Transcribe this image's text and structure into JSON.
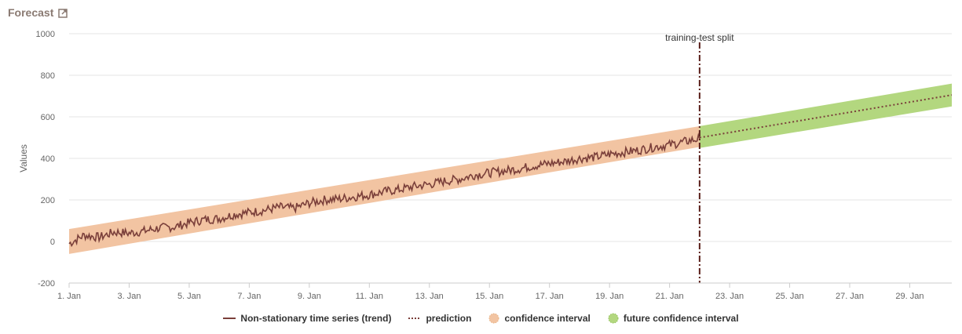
{
  "panel": {
    "title": "Forecast",
    "link_icon": "external-link-icon"
  },
  "colors": {
    "series": "#7a3f3a",
    "prediction": "#7a3f3a",
    "confidence": "#f2c4a2",
    "future_confidence": "#b3d77f",
    "split_line": "#5a1f1a",
    "grid": "#e6e6e6"
  },
  "chart_data": {
    "type": "line",
    "title": "",
    "xlabel": "",
    "ylabel": "Values",
    "ylim": [
      -200,
      1000
    ],
    "yticks": [
      -200,
      0,
      200,
      400,
      600,
      800,
      1000
    ],
    "xlim": [
      1,
      30.4
    ],
    "xticks": [
      {
        "day": 1,
        "label": "1. Jan"
      },
      {
        "day": 3,
        "label": "3. Jan"
      },
      {
        "day": 5,
        "label": "5. Jan"
      },
      {
        "day": 7,
        "label": "7. Jan"
      },
      {
        "day": 9,
        "label": "9. Jan"
      },
      {
        "day": 11,
        "label": "11. Jan"
      },
      {
        "day": 13,
        "label": "13. Jan"
      },
      {
        "day": 15,
        "label": "15. Jan"
      },
      {
        "day": 17,
        "label": "17. Jan"
      },
      {
        "day": 19,
        "label": "19. Jan"
      },
      {
        "day": 21,
        "label": "21. Jan"
      },
      {
        "day": 23,
        "label": "23. Jan"
      },
      {
        "day": 25,
        "label": "25. Jan"
      },
      {
        "day": 27,
        "label": "27. Jan"
      },
      {
        "day": 29,
        "label": "29. Jan"
      }
    ],
    "grid": true,
    "legend_position": "bottom-center",
    "split": {
      "day": 22.0,
      "label": "training-test split"
    },
    "series": [
      {
        "name": "Non-stationary time series (trend)",
        "style": "solid",
        "x": [
          1,
          1.5,
          2,
          2.5,
          3,
          3.5,
          4,
          4.5,
          5,
          5.5,
          6,
          6.5,
          7,
          7.5,
          8,
          8.5,
          9,
          9.5,
          10,
          10.5,
          11,
          11.5,
          12,
          12.5,
          13,
          13.5,
          14,
          14.5,
          15,
          15.5,
          16,
          16.5,
          17,
          17.5,
          18,
          18.5,
          19,
          19.5,
          20,
          20.5,
          21,
          21.5,
          22
        ],
        "y": [
          -10,
          30,
          20,
          45,
          40,
          50,
          65,
          70,
          90,
          105,
          110,
          130,
          140,
          150,
          165,
          160,
          185,
          200,
          205,
          215,
          225,
          240,
          250,
          265,
          275,
          290,
          300,
          320,
          330,
          340,
          350,
          365,
          375,
          385,
          400,
          405,
          420,
          430,
          440,
          455,
          465,
          480,
          495
        ]
      },
      {
        "name": "prediction",
        "style": "dotted",
        "x": [
          22,
          30.4
        ],
        "y": [
          500,
          705
        ]
      }
    ],
    "bands": [
      {
        "name": "confidence interval",
        "x": [
          1,
          22
        ],
        "lower": [
          -60,
          455
        ],
        "upper": [
          60,
          555
        ]
      },
      {
        "name": "future confidence interval",
        "x": [
          22,
          30.4
        ],
        "lower": [
          450,
          650
        ],
        "upper": [
          555,
          760
        ]
      }
    ]
  }
}
